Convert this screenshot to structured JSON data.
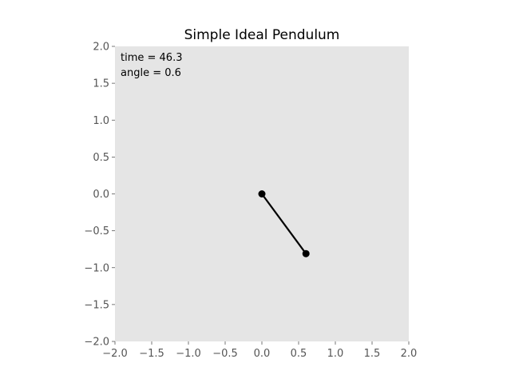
{
  "chart_data": {
    "type": "line",
    "title": "Simple Ideal Pendulum",
    "xlabel": "",
    "ylabel": "",
    "xlim": [
      -2.0,
      2.0
    ],
    "ylim": [
      -2.0,
      2.0
    ],
    "grid": false,
    "xticks": [
      "−2.0",
      "−1.5",
      "−1.0",
      "−0.5",
      "0.0",
      "0.5",
      "1.0",
      "1.5",
      "2.0"
    ],
    "yticks": [
      "2.0",
      "1.5",
      "1.0",
      "0.5",
      "0.0",
      "−0.5",
      "−1.0",
      "−1.5",
      "−2.0"
    ],
    "series": [
      {
        "points": [
          {
            "x": 0.0,
            "y": 0.0
          },
          {
            "x": 0.6,
            "y": -0.81
          }
        ]
      }
    ],
    "annotations": {
      "time": "time = 46.3",
      "angle": "angle = 0.6"
    }
  },
  "colors": {
    "axes_bg": "#e5e5e5",
    "line": "#000000",
    "tick_text": "#555555",
    "title_text": "#000000"
  }
}
